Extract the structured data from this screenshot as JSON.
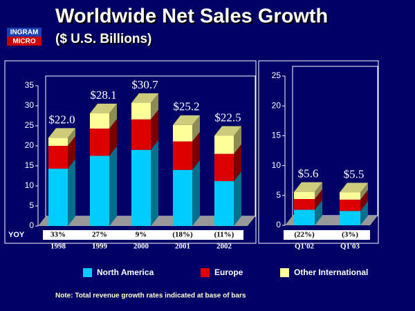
{
  "header": {
    "title": "Worldwide Net Sales Growth",
    "subtitle": "($ U.S. Billions)"
  },
  "logo": {
    "top": "INGRAM",
    "bottom": "MICRO"
  },
  "yoy_label": "YOY",
  "note": "Note: Total revenue growth rates indicated at base of bars",
  "chart_data": [
    {
      "type": "bar",
      "stacked": true,
      "categories": [
        "1998",
        "1999",
        "2000",
        "2001",
        "2002"
      ],
      "series": [
        {
          "name": "North America",
          "color": "#00ccff",
          "values": [
            14.3,
            17.5,
            19.0,
            14.0,
            11.2
          ]
        },
        {
          "name": "Europe",
          "color": "#dd0000",
          "values": [
            5.7,
            6.8,
            7.6,
            7.1,
            6.8
          ]
        },
        {
          "name": "Other International",
          "color": "#ffff99",
          "values": [
            2.0,
            3.8,
            4.1,
            4.1,
            4.5
          ]
        }
      ],
      "totals": [
        22.0,
        28.1,
        30.7,
        25.2,
        22.5
      ],
      "total_labels": [
        "$22.0",
        "$28.1",
        "$30.7",
        "$25.2",
        "$22.5"
      ],
      "yoy_labels": [
        "33%",
        "27%",
        "9%",
        "(18%)",
        "(11%)"
      ],
      "ylim": [
        0,
        35
      ],
      "yticks": [
        0,
        5,
        10,
        15,
        20,
        25,
        30,
        35
      ]
    },
    {
      "type": "bar",
      "stacked": true,
      "categories": [
        "Q1'02",
        "Q1'03"
      ],
      "series": [
        {
          "name": "North America",
          "color": "#00ccff",
          "values": [
            2.6,
            2.4
          ]
        },
        {
          "name": "Europe",
          "color": "#dd0000",
          "values": [
            1.8,
            1.9
          ]
        },
        {
          "name": "Other International",
          "color": "#ffff99",
          "values": [
            1.2,
            1.2
          ]
        }
      ],
      "totals": [
        5.6,
        5.5
      ],
      "total_labels": [
        "$5.6",
        "$5.5"
      ],
      "yoy_labels": [
        "(22%)",
        "(3%)"
      ],
      "ylim": [
        0,
        25
      ],
      "yticks": [
        0,
        5,
        10,
        15,
        20,
        25
      ]
    }
  ]
}
